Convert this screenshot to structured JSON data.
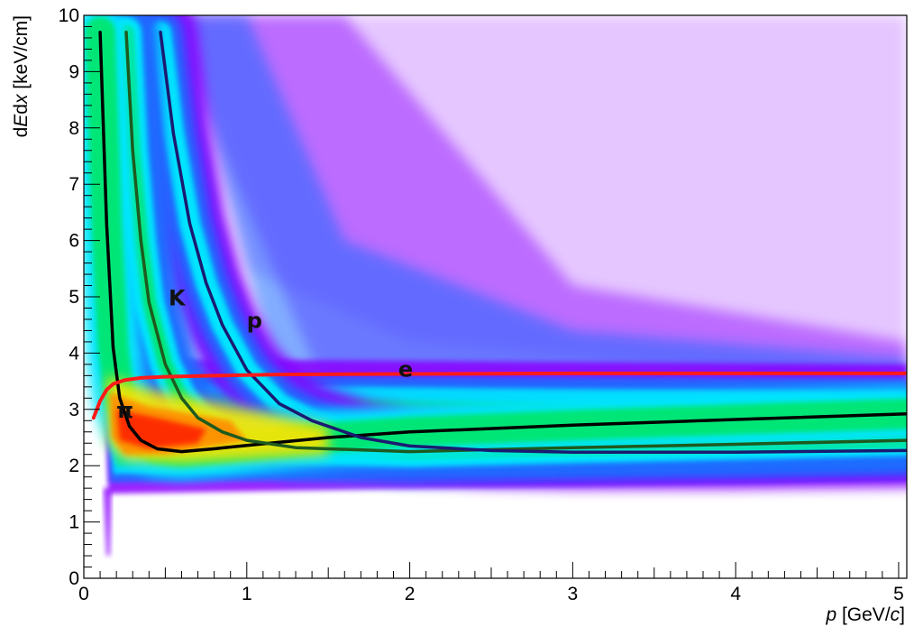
{
  "chart_data": {
    "type": "heatmap",
    "title": "",
    "xlabel": {
      "var": "p",
      "unit_open": " [GeV/",
      "unit_var": "c",
      "unit_close": "]"
    },
    "ylabel": {
      "pre": "d",
      "var1": "E",
      "mid": "d",
      "var2": "x",
      "unit": "  [keV/cm]"
    },
    "xlim": [
      0,
      5.05
    ],
    "ylim": [
      0,
      10
    ],
    "x_ticks": [
      "0",
      "1",
      "2",
      "3",
      "4",
      "5"
    ],
    "y_ticks": [
      "0",
      "1",
      "2",
      "3",
      "4",
      "5",
      "6",
      "7",
      "8",
      "9",
      "10"
    ],
    "grid": false,
    "colormap": [
      "#8b00ff",
      "#1e6bff",
      "#00e5ff",
      "#00e676",
      "#ffe500",
      "#ff8c00",
      "#ff1a00"
    ],
    "band_description": "density of tracks in dE/dx vs p",
    "curves": [
      {
        "name": "π",
        "color": "#000000",
        "x": [
          0.1,
          0.14,
          0.18,
          0.22,
          0.28,
          0.35,
          0.45,
          0.6,
          0.8,
          1.0,
          1.5,
          2.0,
          3.0,
          4.0,
          5.05
        ],
        "y": [
          9.7,
          6.3,
          4.1,
          3.2,
          2.7,
          2.45,
          2.3,
          2.25,
          2.3,
          2.36,
          2.5,
          2.6,
          2.72,
          2.82,
          2.92
        ],
        "label_at": [
          0.2,
          2.85
        ]
      },
      {
        "name": "K",
        "color": "#1e5a1e",
        "x": [
          0.26,
          0.3,
          0.35,
          0.4,
          0.5,
          0.6,
          0.7,
          0.85,
          1.0,
          1.3,
          2.0,
          3.0,
          4.0,
          5.05
        ],
        "y": [
          9.7,
          7.6,
          6.0,
          4.9,
          3.8,
          3.2,
          2.85,
          2.6,
          2.45,
          2.32,
          2.25,
          2.32,
          2.38,
          2.45
        ],
        "label_at": [
          0.52,
          4.85
        ]
      },
      {
        "name": "p",
        "color": "#1a1a70",
        "x": [
          0.47,
          0.55,
          0.65,
          0.75,
          0.85,
          1.0,
          1.2,
          1.4,
          1.7,
          2.0,
          2.5,
          3.0,
          4.0,
          5.05
        ],
        "y": [
          9.7,
          7.9,
          6.3,
          5.25,
          4.5,
          3.7,
          3.1,
          2.8,
          2.5,
          2.35,
          2.27,
          2.24,
          2.24,
          2.27
        ],
        "label_at": [
          1.0,
          4.45
        ]
      },
      {
        "name": "e",
        "color": "#ff1a1a",
        "x": [
          0.06,
          0.1,
          0.14,
          0.18,
          0.25,
          0.35,
          0.5,
          0.8,
          1.2,
          2.0,
          3.0,
          4.0,
          5.05
        ],
        "y": [
          2.85,
          3.15,
          3.35,
          3.45,
          3.52,
          3.56,
          3.58,
          3.6,
          3.62,
          3.63,
          3.64,
          3.64,
          3.64
        ],
        "label_at": [
          1.93,
          3.58
        ]
      }
    ]
  }
}
